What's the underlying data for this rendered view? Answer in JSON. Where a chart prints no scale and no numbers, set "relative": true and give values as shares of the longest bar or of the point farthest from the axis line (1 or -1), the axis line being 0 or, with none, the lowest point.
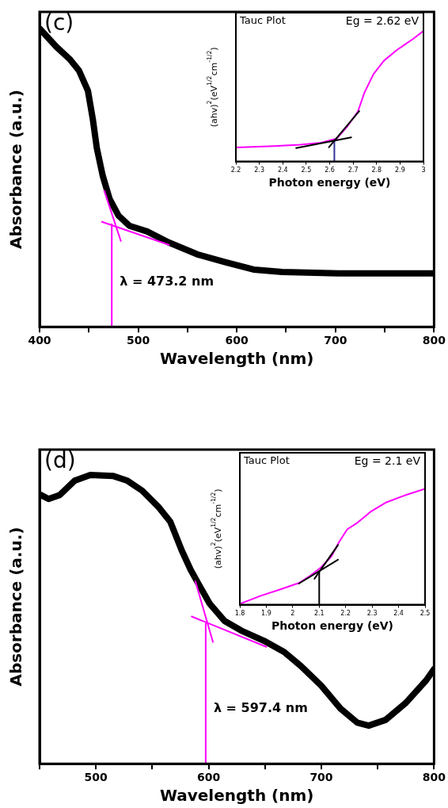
{
  "chart_data": [
    {
      "type": "line",
      "title": "(c)",
      "xlabel": "Wavelength (nm)",
      "ylabel": "Absorbance (a.u.)",
      "relative": true,
      "tick_labels": "x",
      "xlim": [
        400,
        800
      ],
      "xticks": [
        400,
        {
          "value": 450,
          "label": null
        },
        500,
        {
          "value": 550,
          "label": null
        },
        600,
        {
          "value": 650,
          "label": null
        },
        700,
        {
          "value": 750,
          "label": null
        },
        800
      ],
      "annotations": [
        {
          "text": "λ = 473.2 nm",
          "x": 473.2,
          "y": 0.15
        }
      ],
      "series": [
        {
          "color": "#000000",
          "x": [
            400,
            417,
            431,
            440,
            449,
            454,
            458,
            464,
            471,
            480,
            491,
            509,
            531,
            560,
            589,
            617,
            646,
            703,
            800
          ],
          "values": [
            1.0,
            0.939,
            0.896,
            0.859,
            0.792,
            0.696,
            0.6,
            0.507,
            0.429,
            0.373,
            0.339,
            0.32,
            0.283,
            0.243,
            0.216,
            0.192,
            0.184,
            0.179,
            0.179
          ]
        },
        {
          "color": "#ff00ff",
          "x": [
            465.6,
            482.4
          ],
          "values": [
            0.456,
            0.288
          ]
        },
        {
          "color": "#ff00ff",
          "x": [
            463.2,
            531.2
          ],
          "values": [
            0.352,
            0.275
          ]
        },
        {
          "color": "#ff00ff",
          "x": [
            473.2,
            473.2
          ],
          "values": [
            0,
            0.344
          ]
        }
      ]
    },
    {
      "type": "line",
      "title": "Tauc Plot",
      "xlabel": "Photon energy (eV)",
      "ylabel": "(ahv)$^{2}$(eV$^{1/2}$cm$^{-1/2}$)",
      "relative": true,
      "tick_labels": "x",
      "xlim": [
        2.2,
        3.0
      ],
      "xticks": [
        2.2,
        2.3,
        2.4,
        2.5,
        2.6,
        2.7,
        2.8,
        2.9,
        3.0
      ],
      "annotations": [
        "Eg = 2.62 eV"
      ],
      "series": [
        {
          "color": "#ff00ff",
          "x": [
            2.2,
            2.362,
            2.474,
            2.563,
            2.63,
            2.675,
            2.72,
            2.748,
            2.787,
            2.832,
            2.888,
            2.955,
            3.0
          ],
          "values": [
            0.107,
            0.118,
            0.128,
            0.144,
            0.175,
            0.268,
            0.381,
            0.526,
            0.67,
            0.773,
            0.856,
            0.938,
            1.0
          ]
        },
        {
          "color": "#000000",
          "x": [
            2.457,
            2.692
          ],
          "values": [
            0.103,
            0.184
          ]
        },
        {
          "color": "#000000",
          "x": [
            2.597,
            2.726
          ],
          "values": [
            0.109,
            0.386
          ]
        },
        {
          "color": "#333399",
          "x": [
            2.62,
            2.62
          ],
          "values": [
            0,
            0.165
          ]
        }
      ]
    },
    {
      "type": "line",
      "title": "(d)",
      "xlabel": "Wavelength (nm)",
      "ylabel": "Absorbance (a.u.)",
      "relative": true,
      "tick_labels": "x",
      "xlim": [
        450,
        800
      ],
      "xticks": [
        {
          "value": 450,
          "label": null
        },
        500,
        {
          "value": 550,
          "label": null
        },
        600,
        {
          "value": 650,
          "label": null
        },
        700,
        {
          "value": 750,
          "label": null
        },
        800
      ],
      "annotations": [
        {
          "text": "λ = 597.4 nm",
          "x": 597.4,
          "y": 0.19
        }
      ],
      "series": [
        {
          "color": "#000000",
          "x": [
            451,
            458,
            468,
            481,
            495,
            515,
            528,
            541,
            556,
            566,
            576,
            584,
            591,
            601,
            614,
            629,
            649,
            667,
            682,
            700,
            717,
            732,
            742,
            757,
            775,
            793,
            800
          ],
          "values": [
            0.931,
            0.917,
            0.931,
            0.98,
            1.0,
            0.997,
            0.98,
            0.946,
            0.887,
            0.838,
            0.74,
            0.672,
            0.623,
            0.554,
            0.495,
            0.461,
            0.426,
            0.387,
            0.338,
            0.27,
            0.191,
            0.142,
            0.132,
            0.152,
            0.211,
            0.289,
            0.328
          ]
        },
        {
          "color": "#ff00ff",
          "x": [
            588.2,
            603.8
          ],
          "values": [
            0.632,
            0.422
          ]
        },
        {
          "color": "#ff00ff",
          "x": [
            585.0,
            651.2
          ],
          "values": [
            0.51,
            0.405
          ]
        },
        {
          "color": "#ff00ff",
          "x": [
            597.4,
            597.4
          ],
          "values": [
            0,
            0.485
          ]
        }
      ]
    },
    {
      "type": "line",
      "title": "Tauc Plot",
      "xlabel": "Photon energy (eV)",
      "ylabel": "(ahv)$^{2}$(eV$^{1/2}$cm$^{-1/2}$)",
      "relative": true,
      "tick_labels": "x",
      "xlim": [
        1.8,
        2.5
      ],
      "xticks": [
        1.8,
        1.9,
        2.0,
        2.1,
        2.2,
        2.3,
        2.4,
        2.5
      ],
      "annotations": [
        "Eg = 2.1 eV"
      ],
      "series": [
        {
          "color": "#ff00ff",
          "x": [
            1.8,
            1.879,
            1.958,
            2.023,
            2.067,
            2.107,
            2.146,
            2.176,
            2.206,
            2.245,
            2.294,
            2.354,
            2.423,
            2.5
          ],
          "values": [
            0.007,
            0.077,
            0.136,
            0.187,
            0.252,
            0.322,
            0.416,
            0.544,
            0.65,
            0.708,
            0.801,
            0.883,
            0.942,
            1.0
          ]
        },
        {
          "color": "#000000",
          "x": [
            2.023,
            2.171
          ],
          "values": [
            0.182,
            0.388
          ]
        },
        {
          "color": "#000000",
          "x": [
            2.082,
            2.171
          ],
          "values": [
            0.224,
            0.514
          ]
        },
        {
          "color": "#000000",
          "x": [
            2.1,
            2.1
          ],
          "values": [
            0,
            0.287
          ]
        }
      ]
    }
  ]
}
